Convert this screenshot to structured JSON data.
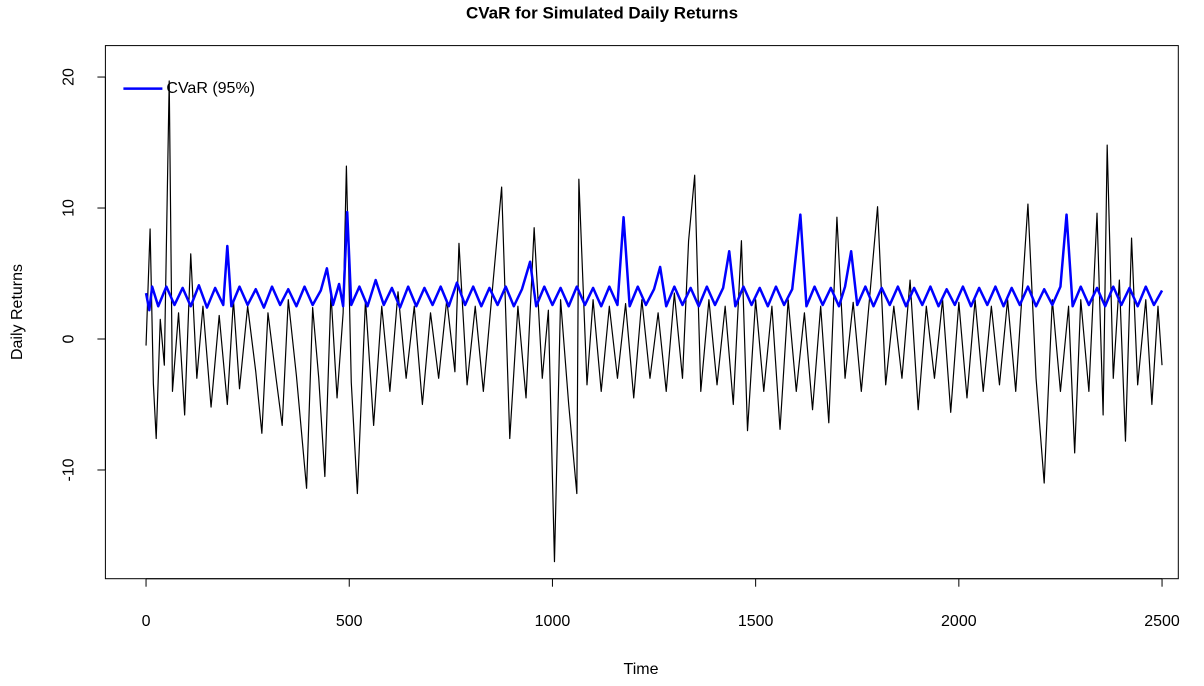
{
  "chart_data": {
    "type": "line",
    "title": "CVaR for Simulated Daily Returns",
    "x_label": "Time",
    "y_label": "Daily Returns",
    "xlim": [
      -100,
      2540
    ],
    "ylim": [
      -18.3,
      22.4
    ],
    "xticks": [
      0,
      500,
      1000,
      1500,
      2000,
      2500
    ],
    "yticks": [
      -10,
      0,
      10,
      20
    ],
    "legend": "top-left",
    "grid": false,
    "series": [
      {
        "color": "#000000",
        "line_width": 1.2,
        "x": [
          0,
          10,
          18,
          25,
          35,
          45,
          57,
          65,
          80,
          95,
          110,
          125,
          140,
          160,
          180,
          200,
          215,
          230,
          250,
          270,
          285,
          300,
          320,
          335,
          350,
          370,
          395,
          410,
          425,
          440,
          455,
          470,
          485,
          493,
          505,
          520,
          540,
          560,
          580,
          600,
          620,
          640,
          660,
          680,
          700,
          720,
          740,
          760,
          770,
          790,
          810,
          830,
          850,
          875,
          895,
          915,
          935,
          955,
          975,
          990,
          1005,
          1020,
          1040,
          1060,
          1065,
          1085,
          1100,
          1120,
          1140,
          1160,
          1180,
          1200,
          1220,
          1240,
          1260,
          1280,
          1300,
          1320,
          1335,
          1350,
          1365,
          1385,
          1405,
          1425,
          1445,
          1465,
          1480,
          1500,
          1520,
          1540,
          1560,
          1580,
          1600,
          1620,
          1640,
          1660,
          1680,
          1700,
          1720,
          1740,
          1760,
          1780,
          1800,
          1820,
          1840,
          1860,
          1880,
          1900,
          1920,
          1940,
          1960,
          1980,
          2000,
          2020,
          2040,
          2060,
          2080,
          2100,
          2120,
          2140,
          2170,
          2190,
          2210,
          2230,
          2250,
          2270,
          2285,
          2300,
          2320,
          2340,
          2355,
          2365,
          2380,
          2395,
          2410,
          2425,
          2440,
          2460,
          2475,
          2490,
          2500
        ],
        "values": [
          -0.5,
          8.4,
          -3.4,
          -7.6,
          1.5,
          -2,
          19.7,
          -4,
          2,
          -5.8,
          6.5,
          -3,
          2.5,
          -5.2,
          1.8,
          -5,
          3,
          -3.8,
          2.5,
          -2.5,
          -7.2,
          2,
          -3,
          -6.6,
          3,
          -2.8,
          -11.4,
          2.4,
          -3,
          -10.5,
          3.5,
          -4.5,
          2,
          13.2,
          -3.3,
          -11.8,
          3,
          -6.6,
          2.5,
          -4,
          3.6,
          -3,
          2.5,
          -5,
          2,
          -3,
          3,
          -2.5,
          7.3,
          -3.5,
          2.5,
          -4,
          3,
          11.6,
          -7.6,
          2.5,
          -4.5,
          8.5,
          -3,
          2.2,
          -17,
          3,
          -5,
          -11.8,
          12.2,
          -3.5,
          3,
          -4,
          2.5,
          -3,
          2.7,
          -4.5,
          3,
          -3,
          2,
          -4,
          3.5,
          -3,
          7.5,
          12.5,
          -4,
          3,
          -3.5,
          2.5,
          -5,
          7.5,
          -7,
          3,
          -4,
          2.5,
          -6.9,
          3,
          -4,
          2,
          -5.4,
          2.5,
          -6.4,
          9.3,
          -3,
          2.8,
          -4,
          3,
          10.1,
          -3.5,
          2.5,
          -3,
          4.5,
          -5.4,
          2.5,
          -3,
          3,
          -5.6,
          2.8,
          -4.5,
          3,
          -4,
          2.5,
          -3.5,
          3,
          -4,
          10.3,
          -3,
          -11,
          3,
          -4,
          2.5,
          -8.7,
          3,
          -4,
          9.6,
          -5.8,
          14.8,
          -3,
          4.5,
          -7.8,
          7.7,
          -3.5,
          3,
          -5,
          2.5,
          -2
        ]
      },
      {
        "name": "CVaR (95%)",
        "color": "#0000ff",
        "line_width": 2.5,
        "x": [
          0,
          8,
          15,
          30,
          50,
          70,
          90,
          110,
          130,
          150,
          170,
          190,
          200,
          210,
          230,
          250,
          270,
          290,
          310,
          330,
          350,
          370,
          390,
          410,
          430,
          445,
          460,
          475,
          485,
          495,
          505,
          525,
          545,
          565,
          585,
          605,
          625,
          645,
          665,
          685,
          705,
          725,
          745,
          765,
          785,
          805,
          825,
          845,
          865,
          885,
          905,
          925,
          945,
          960,
          980,
          1000,
          1020,
          1040,
          1060,
          1080,
          1100,
          1120,
          1140,
          1160,
          1175,
          1190,
          1210,
          1230,
          1250,
          1265,
          1280,
          1300,
          1320,
          1340,
          1360,
          1380,
          1400,
          1420,
          1435,
          1450,
          1470,
          1490,
          1510,
          1530,
          1550,
          1570,
          1590,
          1610,
          1625,
          1645,
          1665,
          1685,
          1705,
          1720,
          1735,
          1750,
          1770,
          1790,
          1810,
          1830,
          1850,
          1870,
          1890,
          1910,
          1930,
          1950,
          1970,
          1990,
          2010,
          2030,
          2050,
          2070,
          2090,
          2110,
          2130,
          2150,
          2170,
          2190,
          2210,
          2230,
          2250,
          2265,
          2280,
          2300,
          2320,
          2340,
          2360,
          2380,
          2400,
          2420,
          2440,
          2460,
          2480,
          2500
        ],
        "values": [
          3.5,
          2.2,
          4,
          2.5,
          4,
          2.6,
          3.9,
          2.5,
          4.1,
          2.4,
          3.9,
          2.6,
          7.1,
          2.5,
          4,
          2.6,
          3.8,
          2.4,
          4,
          2.6,
          3.8,
          2.5,
          4,
          2.6,
          3.7,
          5.4,
          2.6,
          4.2,
          2.5,
          9.7,
          2.6,
          4,
          2.5,
          4.5,
          2.6,
          3.9,
          2.4,
          4,
          2.5,
          3.9,
          2.6,
          4,
          2.5,
          4.3,
          2.6,
          4,
          2.5,
          3.9,
          2.6,
          4,
          2.5,
          3.8,
          5.9,
          2.5,
          4,
          2.6,
          3.9,
          2.5,
          4,
          2.6,
          3.9,
          2.5,
          4,
          2.6,
          9.3,
          2.5,
          4,
          2.6,
          3.8,
          5.5,
          2.5,
          4,
          2.6,
          3.9,
          2.5,
          4,
          2.6,
          3.9,
          6.7,
          2.5,
          4,
          2.6,
          3.9,
          2.5,
          4,
          2.6,
          3.8,
          9.5,
          2.5,
          4,
          2.6,
          3.9,
          2.5,
          4,
          6.7,
          2.6,
          4,
          2.5,
          3.9,
          2.6,
          4,
          2.5,
          3.9,
          2.6,
          4,
          2.5,
          3.8,
          2.6,
          4,
          2.5,
          3.9,
          2.6,
          4,
          2.5,
          3.9,
          2.6,
          4,
          2.5,
          3.8,
          2.6,
          4,
          9.5,
          2.5,
          4,
          2.6,
          3.9,
          2.5,
          4,
          2.6,
          3.9,
          2.5,
          4,
          2.6,
          3.7
        ]
      }
    ]
  }
}
